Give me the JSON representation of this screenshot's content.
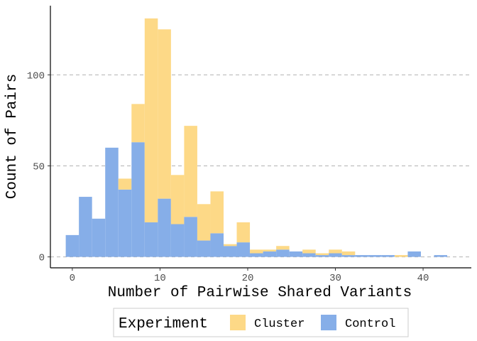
{
  "chart_data": {
    "type": "bar",
    "subtype": "stacked-histogram",
    "title": "",
    "xlabel": "Number of Pairwise Shared Variants",
    "ylabel": "Count of Pairs",
    "xlim": [
      -2.5,
      45.5
    ],
    "ylim": [
      -6,
      138
    ],
    "x_ticks": [
      0,
      10,
      20,
      30,
      40
    ],
    "y_ticks": [
      0,
      50,
      100
    ],
    "grid": "horizontal-dashed",
    "legend": {
      "title": "Experiment",
      "placement": "bottom"
    },
    "bin_width": 1.5,
    "bins": [
      0,
      1.5,
      3,
      4.5,
      6,
      7.5,
      9,
      10.5,
      12,
      13.5,
      15,
      16.5,
      18,
      19.5,
      21,
      22.5,
      24,
      25.5,
      27,
      28.5,
      30,
      31.5,
      33,
      34.5,
      36,
      37.5,
      39,
      40.5,
      42
    ],
    "series": [
      {
        "name": "Control",
        "color": "#86AEE8",
        "values": [
          12,
          33,
          21,
          60,
          37,
          63,
          19,
          32,
          18,
          22,
          9,
          13,
          6,
          8,
          2,
          3,
          4,
          3,
          2,
          1,
          2,
          1,
          1,
          1,
          1,
          0,
          3,
          0,
          1
        ]
      },
      {
        "name": "Cluster",
        "color": "#FDD987",
        "values": [
          0,
          0,
          0,
          0,
          6,
          21,
          112,
          93,
          27,
          50,
          20,
          23,
          1,
          11,
          2,
          1,
          2,
          0,
          2,
          1,
          2,
          2,
          0,
          0,
          0,
          1,
          0,
          0,
          0
        ]
      }
    ]
  }
}
